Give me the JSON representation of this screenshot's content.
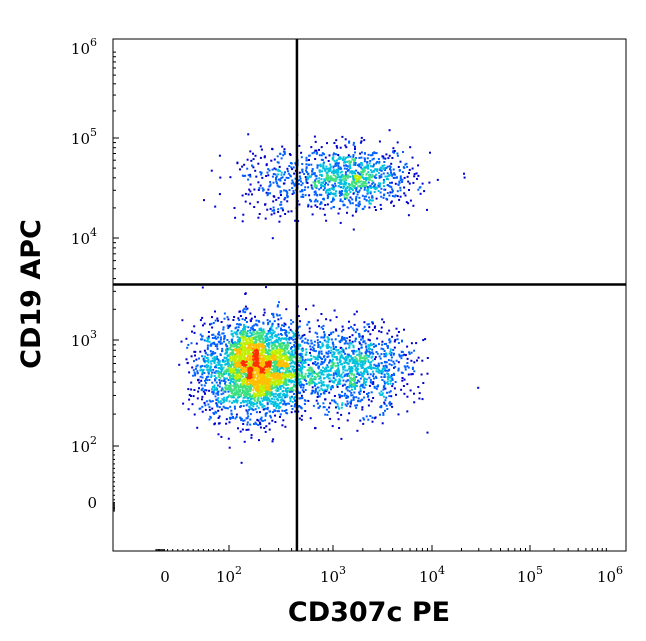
{
  "chart_data": {
    "type": "scatter",
    "plot_kind": "flow cytometry density dot plot with quadrant gates",
    "xlabel": "CD307c PE",
    "ylabel": "CD19 APC",
    "x_scale": "biexponential (logicle)",
    "y_scale": "biexponential (logicle)",
    "x_ticks": [
      {
        "value": 0,
        "base": "0",
        "exp": ""
      },
      {
        "value": 100,
        "base": "10",
        "exp": "2"
      },
      {
        "value": 1000,
        "base": "10",
        "exp": "3"
      },
      {
        "value": 10000,
        "base": "10",
        "exp": "4"
      },
      {
        "value": 100000,
        "base": "10",
        "exp": "5"
      },
      {
        "value": 1000000,
        "base": "10",
        "exp": "6"
      }
    ],
    "y_ticks": [
      {
        "value": 0,
        "base": "0",
        "exp": ""
      },
      {
        "value": 100,
        "base": "10",
        "exp": "2"
      },
      {
        "value": 1000,
        "base": "10",
        "exp": "3"
      },
      {
        "value": 10000,
        "base": "10",
        "exp": "4"
      },
      {
        "value": 100000,
        "base": "10",
        "exp": "5"
      },
      {
        "value": 1000000,
        "base": "10",
        "exp": "6"
      }
    ],
    "quadrant_gate": {
      "x": 450,
      "y": 3500
    },
    "density_colors": [
      "#0000cc",
      "#0060ff",
      "#00c0e0",
      "#40e080",
      "#c0f000",
      "#ffc000",
      "#ff3000"
    ],
    "populations": [
      {
        "name": "CD19- CD307c- major",
        "center_x": 180,
        "center_y": 550,
        "spread_x_decades": 0.25,
        "spread_y_decades": 0.22,
        "relative_count": 1.0
      },
      {
        "name": "CD19- CD307c+ minor",
        "center_x": 1500,
        "center_y": 550,
        "spread_x_decades": 0.3,
        "spread_y_decades": 0.2,
        "relative_count": 0.35
      },
      {
        "name": "CD19+ CD307c+",
        "center_x": 1500,
        "center_y": 40000,
        "spread_x_decades": 0.32,
        "spread_y_decades": 0.15,
        "relative_count": 0.3
      },
      {
        "name": "CD19+ CD307c-",
        "center_x": 250,
        "center_y": 38000,
        "spread_x_decades": 0.2,
        "spread_y_decades": 0.2,
        "relative_count": 0.06
      }
    ]
  }
}
